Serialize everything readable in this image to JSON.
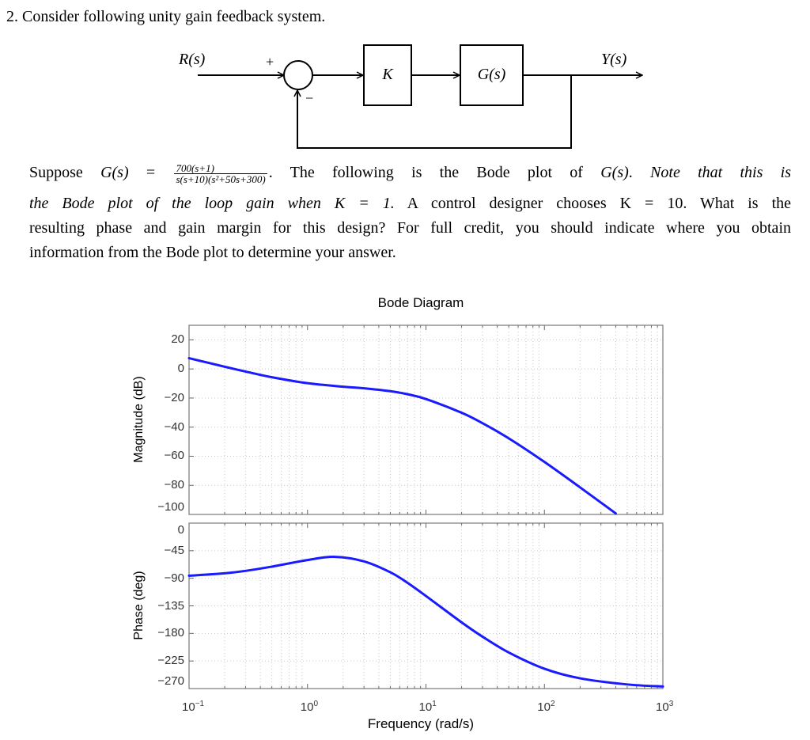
{
  "question": {
    "title": "2. Consider following unity gain feedback system.",
    "line1": {
      "a": "Suppose ",
      "g1": "G(s)",
      "eq": " = ",
      "num": "700(s+1)",
      "den": "s(s+10)(s²+50s+300)",
      "b": ". The following is the Bode plot of ",
      "g2": "G(s)",
      "c": ". ",
      "it": "Note that this is"
    },
    "line2": {
      "it": "the Bode plot of the loop gain when K = 1.",
      "b": " A control designer chooses K = 10. What is the"
    },
    "line3": "resulting phase and gain margin for this design? For full credit, you should indicate where you obtain",
    "line4": "information from the Bode plot to determine your answer."
  },
  "diagram": {
    "input": "R(s)",
    "output": "Y(s)",
    "plus": "+",
    "minus": "−",
    "block1": "K",
    "block2": "G(s)"
  },
  "chart_data": {
    "type": "line",
    "title": "Bode Diagram",
    "xlabel": "Frequency  (rad/s)",
    "xscale": "log",
    "xlim": [
      0.1,
      1000
    ],
    "x_ticks": [
      {
        "base": "10",
        "exp": "−1",
        "value": 0.1
      },
      {
        "base": "10",
        "exp": "0",
        "value": 1
      },
      {
        "base": "10",
        "exp": "1",
        "value": 10
      },
      {
        "base": "10",
        "exp": "2",
        "value": 100
      },
      {
        "base": "10",
        "exp": "3",
        "value": 1000
      }
    ],
    "grid": true,
    "panels": [
      {
        "name": "magnitude",
        "ylabel": "Magnitude (dB)",
        "ylim": [
          -100,
          30
        ],
        "y_ticks": [
          {
            "label": "20",
            "value": 20
          },
          {
            "label": "0",
            "value": 0
          },
          {
            "label": "−20",
            "value": -20
          },
          {
            "label": "−40",
            "value": -40
          },
          {
            "label": "−60",
            "value": -60
          },
          {
            "label": "−80",
            "value": -80
          },
          {
            "label": "−100",
            "value": -100
          }
        ],
        "series": [
          {
            "name": "G(s)",
            "color": "#1a1aff",
            "x": [
              0.1,
              0.2,
              0.3,
              0.5,
              1,
              2,
              3,
              5,
              7,
              10,
              20,
              30,
              50,
              100,
              200,
              400
            ],
            "y": [
              7.4,
              1.5,
              -1.8,
              -5.7,
              -9.8,
              -12.2,
              -13.3,
              -15.3,
              -17.4,
              -20.7,
              -30.1,
              -37.3,
              -47.7,
              -63.9,
              -81.4,
              -99.3
            ]
          }
        ]
      },
      {
        "name": "phase",
        "ylabel": "Phase (deg)",
        "ylim": [
          -270,
          0
        ],
        "y_ticks": [
          {
            "label": "0",
            "value": 0
          },
          {
            "label": "−45",
            "value": -45
          },
          {
            "label": "−90",
            "value": -90
          },
          {
            "label": "−135",
            "value": -135
          },
          {
            "label": "−180",
            "value": -180
          },
          {
            "label": "−225",
            "value": -225
          },
          {
            "label": "−270",
            "value": -270
          }
        ],
        "series": [
          {
            "name": "G(s)",
            "color": "#1a1aff",
            "x": [
              0.1,
              0.2,
              0.3,
              0.5,
              1,
              1.7,
              3,
              5,
              7,
              10,
              20,
              30,
              50,
              100,
              200,
              500,
              1000
            ],
            "y": [
              -85.8,
              -81.8,
              -77.9,
              -71.0,
              -60.2,
              -55.0,
              -62.4,
              -80.2,
              -97.5,
              -118.9,
              -162,
              -185.3,
              -211.1,
              -237.6,
              -253.3,
              -263.3,
              -266.6
            ]
          }
        ]
      }
    ]
  }
}
